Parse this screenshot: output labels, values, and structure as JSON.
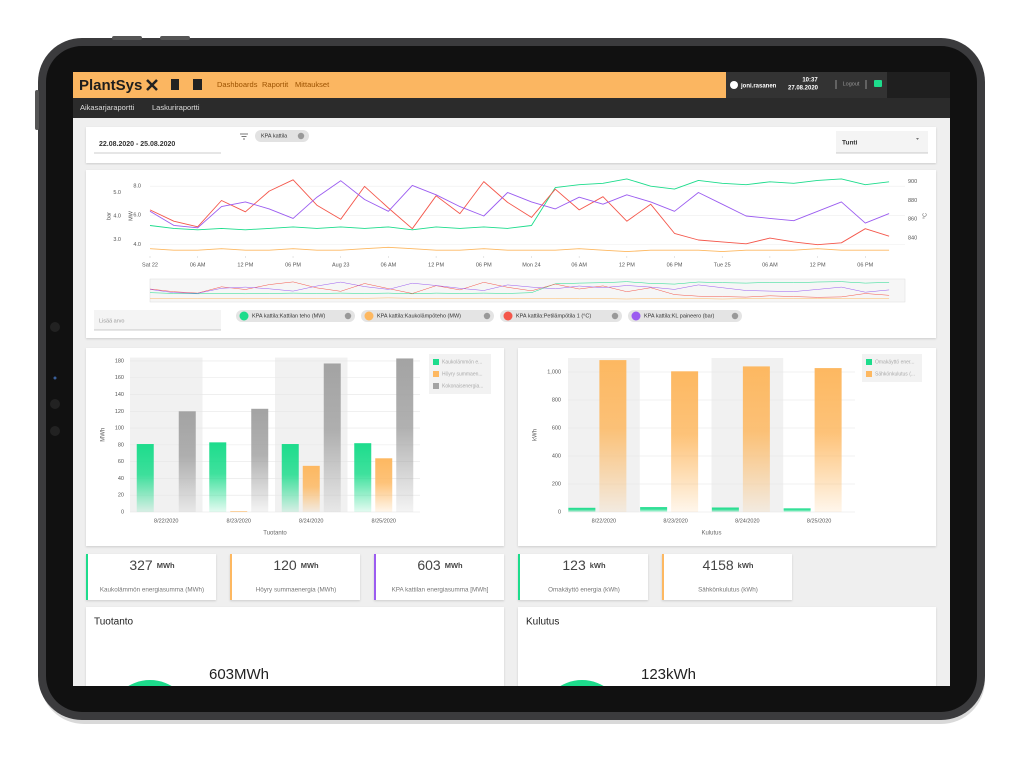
{
  "header": {
    "brand": "PlantSys",
    "nav": [
      "Dashboards",
      "Raportit",
      "Mittaukset"
    ],
    "user": "joni.rasanen",
    "time": "10:37",
    "date": "27.08.2020",
    "logout": "Logout"
  },
  "subnav": [
    "Aikasarjaraportti",
    "Laskuriraportti"
  ],
  "filters": {
    "date_range": "22.08.2020 - 25.08.2020",
    "chip": "KPA kattila",
    "interval": "Tunti",
    "add_value": "Lisää arvo"
  },
  "chart_data": [
    {
      "type": "line",
      "grid": true,
      "x": [
        0,
        3,
        6,
        9,
        12,
        15,
        18,
        21,
        24,
        27,
        30,
        33,
        36,
        39,
        42,
        45,
        48,
        51,
        54,
        57,
        60,
        63,
        66,
        69,
        72,
        75,
        78,
        81,
        84,
        87,
        90,
        93
      ],
      "xlim": [
        0,
        95
      ],
      "xticks": [
        {
          "value": 0,
          "label": "Sat 22"
        },
        {
          "value": 6,
          "label": "06 AM"
        },
        {
          "value": 12,
          "label": "12 PM"
        },
        {
          "value": 18,
          "label": "06 PM"
        },
        {
          "value": 24,
          "label": "Aug 23"
        },
        {
          "value": 30,
          "label": "06 AM"
        },
        {
          "value": 36,
          "label": "12 PM"
        },
        {
          "value": 42,
          "label": "06 PM"
        },
        {
          "value": 48,
          "label": "Mon 24"
        },
        {
          "value": 54,
          "label": "06 AM"
        },
        {
          "value": 60,
          "label": "12 PM"
        },
        {
          "value": 66,
          "label": "06 PM"
        },
        {
          "value": 72,
          "label": "Tue 25"
        },
        {
          "value": 78,
          "label": "06 AM"
        },
        {
          "value": 84,
          "label": "12 PM"
        },
        {
          "value": 90,
          "label": "06 PM"
        }
      ],
      "ylabel": "MW",
      "ylim": [
        3.2,
        8.7
      ],
      "yticks": [
        {
          "value": 4,
          "label": "4.0"
        },
        {
          "value": 6,
          "label": "6.0"
        },
        {
          "value": 8,
          "label": "8.0"
        }
      ],
      "y2label": "°C",
      "y2lim": [
        821,
        906
      ],
      "y2ticks": [
        840,
        860,
        880,
        900
      ],
      "y3label": "bar",
      "y3lim": [
        2.3,
        5.7
      ],
      "y3ticks": [
        {
          "value": 3,
          "label": "3.0"
        },
        {
          "value": 4,
          "label": "4.0"
        },
        {
          "value": 5,
          "label": "5.0"
        }
      ],
      "series": [
        {
          "name": "KPA kattila:Kattilan teho (MW)",
          "color": "#1ddc8c",
          "values": [
            5.3,
            5.1,
            5.0,
            5.1,
            5.0,
            5.1,
            5.2,
            5.1,
            5.2,
            5.1,
            5.2,
            5.0,
            5.2,
            5.1,
            5.2,
            5.1,
            5.3,
            7.9,
            8.1,
            8.2,
            8.5,
            8.0,
            7.8,
            8.4,
            8.2,
            8.1,
            8.3,
            8.2,
            8.4,
            8.5,
            8.1,
            8.3
          ]
        },
        {
          "name": "KPA kattila:Kaukolämpöteho (MW)",
          "color": "#fdb861",
          "values": [
            3.7,
            3.6,
            3.6,
            3.7,
            3.6,
            3.6,
            3.7,
            3.6,
            3.6,
            3.7,
            3.8,
            3.7,
            3.6,
            3.6,
            3.7,
            3.6,
            3.6,
            3.6,
            3.7,
            3.6,
            3.5,
            3.6,
            3.6,
            3.6,
            3.5,
            3.6,
            3.6,
            3.6,
            3.7,
            3.6,
            3.6,
            3.6
          ]
        },
        {
          "name": "KPA kattila:Petilämpötila 1 (°C)",
          "color": "#f4574b",
          "axis": "y2",
          "values": [
            870,
            858,
            852,
            880,
            868,
            890,
            902,
            875,
            860,
            895,
            872,
            850,
            885,
            866,
            900,
            878,
            862,
            892,
            870,
            884,
            858,
            876,
            845,
            838,
            836,
            834,
            840,
            836,
            833,
            835,
            850,
            842
          ]
        },
        {
          "name": "KPA kattila:KL paineero (bar)",
          "color": "#9b5cf0",
          "axis": "y3",
          "values": [
            4.2,
            3.6,
            3.5,
            4.4,
            4.6,
            4.3,
            3.9,
            4.8,
            5.5,
            4.7,
            4.2,
            5.3,
            4.9,
            4.4,
            4.0,
            5.0,
            4.6,
            4.3,
            4.8,
            4.5,
            4.9,
            4.6,
            4.2,
            5.0,
            4.5,
            4.0,
            3.9,
            3.8,
            4.2,
            4.6,
            3.7,
            4.1
          ]
        }
      ]
    },
    {
      "type": "bar",
      "grid": true,
      "xlabel": "Tuotanto",
      "ylabel": "MWh",
      "categories": [
        "8/22/2020",
        "8/23/2020",
        "8/24/2020",
        "8/25/2020"
      ],
      "ylim": [
        0,
        184
      ],
      "yticks": [
        0,
        20,
        40,
        60,
        80,
        100,
        120,
        140,
        160,
        180
      ],
      "series": [
        {
          "name": "Kaukolämmön e...",
          "color": "#1ddc8c",
          "values": [
            81,
            83,
            81,
            82
          ]
        },
        {
          "name": "Höyry summaen...",
          "color": "#fdb861",
          "values": [
            0,
            1,
            55,
            64
          ]
        },
        {
          "name": "Kokonaisenergia...",
          "color": "#a3a3a3",
          "values": [
            120,
            123,
            177,
            183
          ]
        }
      ]
    },
    {
      "type": "bar",
      "grid": true,
      "xlabel": "Kulutus",
      "ylabel": "kWh",
      "categories": [
        "8/22/2020",
        "8/23/2020",
        "8/24/2020",
        "8/25/2020"
      ],
      "ylim": [
        0,
        1100
      ],
      "yticks": [
        0,
        200,
        400,
        600,
        800,
        {
          "value": 1000,
          "label": "1,000"
        }
      ],
      "series": [
        {
          "name": "Omakäyttö ener...",
          "color": "#1ddc8c",
          "values": [
            30,
            35,
            32,
            26
          ]
        },
        {
          "name": "Sähkönkulutus (...",
          "color": "#fdb861",
          "values": [
            1085,
            1005,
            1040,
            1028
          ]
        }
      ]
    }
  ],
  "kpis": [
    {
      "value": 327,
      "unit": "MWh",
      "label": "Kaukolämmön energiasumma (MWh)"
    },
    {
      "value": 120,
      "unit": "MWh",
      "label": "Höyry summaenergia (MWh)"
    },
    {
      "value": 603,
      "unit": "MWh",
      "label": "KPA kattilan energiasumma [MWh]"
    },
    {
      "value": 123,
      "unit": "kWh",
      "label": "Omakäyttö energia (kWh)"
    },
    {
      "value": 4158,
      "unit": "kWh",
      "label": "Sähkönkulutus (kWh)"
    }
  ],
  "summary": [
    {
      "title": "Tuotanto",
      "value": "603MWh"
    },
    {
      "title": "Kulutus",
      "value": "123kWh"
    }
  ]
}
